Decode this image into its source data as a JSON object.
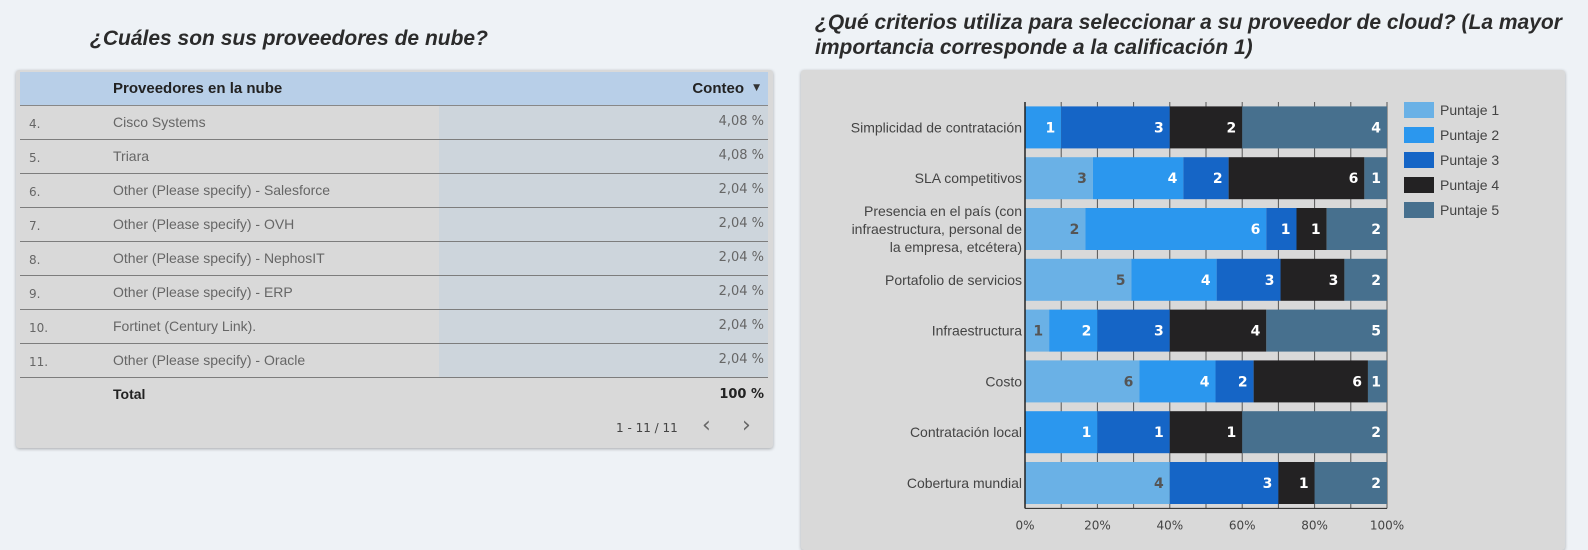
{
  "left_panel": {
    "title": "¿Cuáles son sus proveedores de nube?",
    "table": {
      "columns": [
        "Proveedores en la nube",
        "Conteo"
      ],
      "rows": [
        {
          "idx": "4.",
          "name": "Cisco Systems",
          "value": "4,08 %",
          "fraction": 0.0408
        },
        {
          "idx": "5.",
          "name": "Triara",
          "value": "4,08 %",
          "fraction": 0.0408
        },
        {
          "idx": "6.",
          "name": "Other (Please specify) - Salesforce",
          "value": "2,04 %",
          "fraction": 0.0204
        },
        {
          "idx": "7.",
          "name": "Other (Please specify) - OVH",
          "value": "2,04 %",
          "fraction": 0.0204
        },
        {
          "idx": "8.",
          "name": "Other (Please specify) - NephosIT",
          "value": "2,04 %",
          "fraction": 0.0204
        },
        {
          "idx": "9.",
          "name": "Other (Please specify) - ERP",
          "value": "2,04 %",
          "fraction": 0.0204
        },
        {
          "idx": "10.",
          "name": "Fortinet (Century Link).",
          "value": "2,04 %",
          "fraction": 0.0204
        },
        {
          "idx": "11.",
          "name": "Other (Please specify) - Oracle",
          "value": "2,04 %",
          "fraction": 0.0204
        }
      ],
      "total_label": "Total",
      "total_value": "100 %",
      "pagination": "1 - 11 / 11"
    }
  },
  "right_panel": {
    "title": "¿Qué criterios utiliza para seleccionar a su proveedor de cloud? (La mayor importancia corresponde a la calificación 1)"
  },
  "chart_data": {
    "type": "bar",
    "orientation": "horizontal",
    "stacked": "percent",
    "categories": [
      "Simplicidad de contratación",
      "SLA competitivos",
      "Presencia en el país (con infraestructura, personal de la empresa, etcétera)",
      "Portafolio de servicios",
      "Infraestructura",
      "Costo",
      "Contratación local",
      "Cobertura mundial"
    ],
    "series": [
      {
        "name": "Puntaje 1",
        "color": "#6ab1e6",
        "text_color": "#555555",
        "values": [
          0,
          3,
          2,
          5,
          1,
          6,
          0,
          4
        ]
      },
      {
        "name": "Puntaje 2",
        "color": "#2b97ee",
        "text_color": "#ffffff",
        "values": [
          1,
          4,
          6,
          4,
          2,
          4,
          1,
          0
        ]
      },
      {
        "name": "Puntaje 3",
        "color": "#1565c6",
        "text_color": "#ffffff",
        "values": [
          3,
          2,
          1,
          3,
          3,
          2,
          1,
          3
        ]
      },
      {
        "name": "Puntaje 4",
        "color": "#232223",
        "text_color": "#ffffff",
        "values": [
          2,
          6,
          1,
          3,
          4,
          6,
          1,
          1
        ]
      },
      {
        "name": "Puntaje 5",
        "color": "#47708e",
        "text_color": "#ffffff",
        "values": [
          4,
          1,
          2,
          2,
          5,
          1,
          2,
          2
        ]
      }
    ],
    "x_ticks": [
      "0%",
      "20%",
      "40%",
      "60%",
      "80%",
      "100%"
    ],
    "xlim": [
      0,
      100
    ],
    "grid": true,
    "legend": "right"
  }
}
